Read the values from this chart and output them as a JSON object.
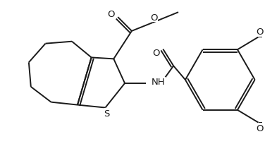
{
  "background_color": "#ffffff",
  "line_color": "#1a1a1a",
  "lw": 1.4,
  "figsize": [
    3.76,
    2.32
  ],
  "dpi": 100,
  "xlim": [
    0,
    376
  ],
  "ylim": [
    0,
    232
  ]
}
